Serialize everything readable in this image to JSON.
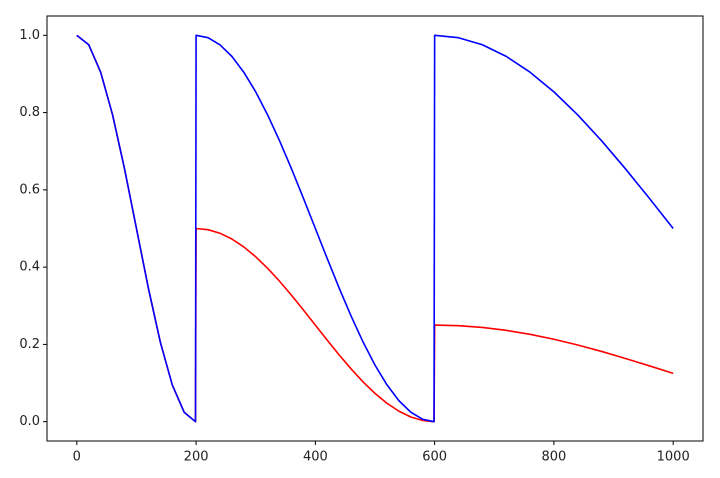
{
  "chart_data": {
    "type": "line",
    "x": [
      0,
      20,
      40,
      60,
      80,
      100,
      120,
      140,
      160,
      180,
      199,
      200,
      220,
      240,
      260,
      280,
      300,
      320,
      340,
      360,
      380,
      400,
      420,
      440,
      460,
      480,
      500,
      520,
      540,
      560,
      580,
      599,
      600,
      640,
      680,
      720,
      760,
      800,
      840,
      880,
      920,
      960,
      1000
    ],
    "series": [
      {
        "name": "blue",
        "color": "#0000ff",
        "values": [
          1,
          0.9755,
          0.9045,
          0.7939,
          0.6545,
          0.5,
          0.3455,
          0.2061,
          0.0955,
          0.0245,
          0,
          1,
          0.9938,
          0.9755,
          0.9455,
          0.9045,
          0.8536,
          0.7939,
          0.727,
          0.6545,
          0.5782,
          0.5,
          0.4218,
          0.3455,
          0.273,
          0.2061,
          0.1464,
          0.0955,
          0.0545,
          0.0245,
          0.0062,
          0,
          1,
          0.9938,
          0.9755,
          0.9455,
          0.9045,
          0.8536,
          0.7939,
          0.727,
          0.6545,
          0.5782,
          0.5
        ]
      },
      {
        "name": "red",
        "color": "#ff0000",
        "values": [
          1,
          0.9755,
          0.9045,
          0.7939,
          0.6545,
          0.5,
          0.3455,
          0.2061,
          0.0955,
          0.0245,
          0,
          0.5,
          0.4969,
          0.4878,
          0.4728,
          0.4523,
          0.4268,
          0.3969,
          0.3635,
          0.3273,
          0.2891,
          0.25,
          0.2109,
          0.1727,
          0.1365,
          0.103,
          0.0732,
          0.0477,
          0.0273,
          0.0122,
          0.0031,
          0,
          0.25,
          0.2485,
          0.2439,
          0.2364,
          0.2261,
          0.2134,
          0.1985,
          0.1818,
          0.1636,
          0.1446,
          0.125
        ]
      }
    ],
    "xlim": [
      -50,
      1050
    ],
    "ylim": [
      -0.05,
      1.05
    ],
    "xticks": [
      0,
      200,
      400,
      600,
      800,
      1000
    ],
    "yticks": [
      {
        "value": 0,
        "label": "0.0"
      },
      0.2,
      0.4,
      0.6,
      0.8,
      {
        "value": 1,
        "label": "1.0"
      }
    ],
    "grid": false
  }
}
